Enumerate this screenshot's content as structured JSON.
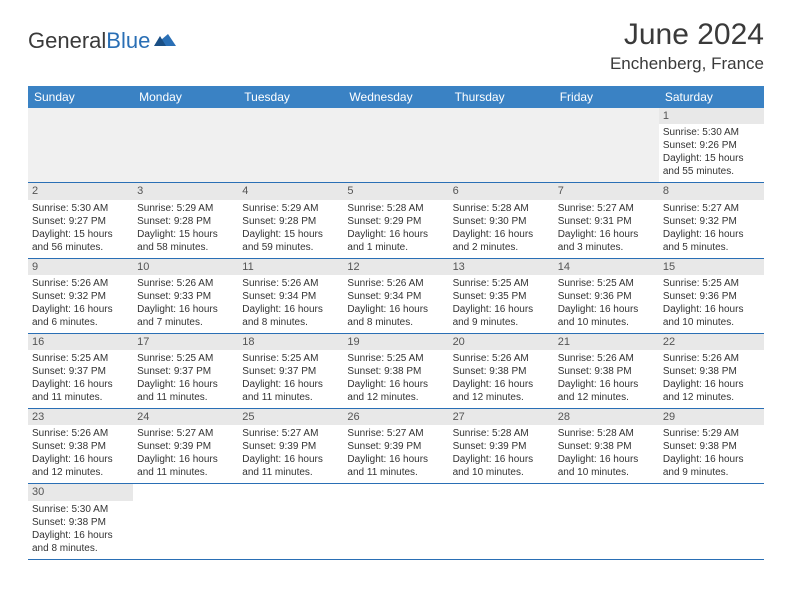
{
  "logo": {
    "text1": "General",
    "text2": "Blue"
  },
  "title": "June 2024",
  "location": "Enchenberg, France",
  "colors": {
    "header_bg": "#3a82c4",
    "header_text": "#ffffff",
    "row_border": "#2a6fb5",
    "daynum_bg": "#e8e8e8",
    "text": "#333333"
  },
  "weekdays": [
    "Sunday",
    "Monday",
    "Tuesday",
    "Wednesday",
    "Thursday",
    "Friday",
    "Saturday"
  ],
  "weeks": [
    [
      null,
      null,
      null,
      null,
      null,
      null,
      {
        "n": "1",
        "sr": "5:30 AM",
        "ss": "9:26 PM",
        "dl": "15 hours and 55 minutes."
      }
    ],
    [
      {
        "n": "2",
        "sr": "5:30 AM",
        "ss": "9:27 PM",
        "dl": "15 hours and 56 minutes."
      },
      {
        "n": "3",
        "sr": "5:29 AM",
        "ss": "9:28 PM",
        "dl": "15 hours and 58 minutes."
      },
      {
        "n": "4",
        "sr": "5:29 AM",
        "ss": "9:28 PM",
        "dl": "15 hours and 59 minutes."
      },
      {
        "n": "5",
        "sr": "5:28 AM",
        "ss": "9:29 PM",
        "dl": "16 hours and 1 minute."
      },
      {
        "n": "6",
        "sr": "5:28 AM",
        "ss": "9:30 PM",
        "dl": "16 hours and 2 minutes."
      },
      {
        "n": "7",
        "sr": "5:27 AM",
        "ss": "9:31 PM",
        "dl": "16 hours and 3 minutes."
      },
      {
        "n": "8",
        "sr": "5:27 AM",
        "ss": "9:32 PM",
        "dl": "16 hours and 5 minutes."
      }
    ],
    [
      {
        "n": "9",
        "sr": "5:26 AM",
        "ss": "9:32 PM",
        "dl": "16 hours and 6 minutes."
      },
      {
        "n": "10",
        "sr": "5:26 AM",
        "ss": "9:33 PM",
        "dl": "16 hours and 7 minutes."
      },
      {
        "n": "11",
        "sr": "5:26 AM",
        "ss": "9:34 PM",
        "dl": "16 hours and 8 minutes."
      },
      {
        "n": "12",
        "sr": "5:26 AM",
        "ss": "9:34 PM",
        "dl": "16 hours and 8 minutes."
      },
      {
        "n": "13",
        "sr": "5:25 AM",
        "ss": "9:35 PM",
        "dl": "16 hours and 9 minutes."
      },
      {
        "n": "14",
        "sr": "5:25 AM",
        "ss": "9:36 PM",
        "dl": "16 hours and 10 minutes."
      },
      {
        "n": "15",
        "sr": "5:25 AM",
        "ss": "9:36 PM",
        "dl": "16 hours and 10 minutes."
      }
    ],
    [
      {
        "n": "16",
        "sr": "5:25 AM",
        "ss": "9:37 PM",
        "dl": "16 hours and 11 minutes."
      },
      {
        "n": "17",
        "sr": "5:25 AM",
        "ss": "9:37 PM",
        "dl": "16 hours and 11 minutes."
      },
      {
        "n": "18",
        "sr": "5:25 AM",
        "ss": "9:37 PM",
        "dl": "16 hours and 11 minutes."
      },
      {
        "n": "19",
        "sr": "5:25 AM",
        "ss": "9:38 PM",
        "dl": "16 hours and 12 minutes."
      },
      {
        "n": "20",
        "sr": "5:26 AM",
        "ss": "9:38 PM",
        "dl": "16 hours and 12 minutes."
      },
      {
        "n": "21",
        "sr": "5:26 AM",
        "ss": "9:38 PM",
        "dl": "16 hours and 12 minutes."
      },
      {
        "n": "22",
        "sr": "5:26 AM",
        "ss": "9:38 PM",
        "dl": "16 hours and 12 minutes."
      }
    ],
    [
      {
        "n": "23",
        "sr": "5:26 AM",
        "ss": "9:38 PM",
        "dl": "16 hours and 12 minutes."
      },
      {
        "n": "24",
        "sr": "5:27 AM",
        "ss": "9:39 PM",
        "dl": "16 hours and 11 minutes."
      },
      {
        "n": "25",
        "sr": "5:27 AM",
        "ss": "9:39 PM",
        "dl": "16 hours and 11 minutes."
      },
      {
        "n": "26",
        "sr": "5:27 AM",
        "ss": "9:39 PM",
        "dl": "16 hours and 11 minutes."
      },
      {
        "n": "27",
        "sr": "5:28 AM",
        "ss": "9:39 PM",
        "dl": "16 hours and 10 minutes."
      },
      {
        "n": "28",
        "sr": "5:28 AM",
        "ss": "9:38 PM",
        "dl": "16 hours and 10 minutes."
      },
      {
        "n": "29",
        "sr": "5:29 AM",
        "ss": "9:38 PM",
        "dl": "16 hours and 9 minutes."
      }
    ],
    [
      {
        "n": "30",
        "sr": "5:30 AM",
        "ss": "9:38 PM",
        "dl": "16 hours and 8 minutes."
      },
      null,
      null,
      null,
      null,
      null,
      null
    ]
  ],
  "labels": {
    "sunrise": "Sunrise:",
    "sunset": "Sunset:",
    "daylight": "Daylight:"
  }
}
